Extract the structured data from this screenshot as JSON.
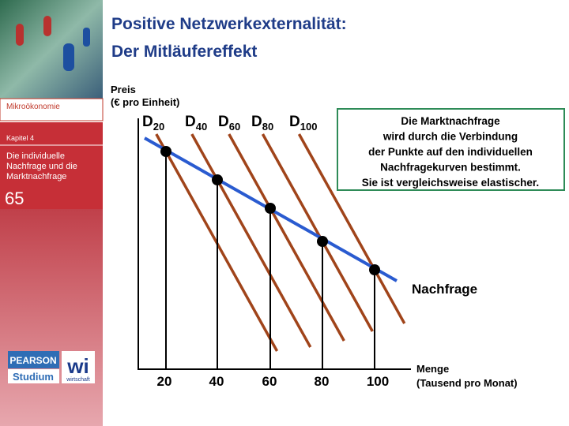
{
  "sidebar": {
    "course": "Mikroökonomie",
    "chapter": "Kapitel 4",
    "chapter_title": [
      "Die individuelle",
      "Nachfrage und die",
      "Marktnachfrage"
    ],
    "slide_number": "65",
    "logo": {
      "publisher": "PEARSON",
      "imprint": "Studium",
      "series": "wi",
      "series_sub": "wirtschaft"
    }
  },
  "title": [
    "Positive Netzwerkexternalität:",
    "Der Mitläufereffekt"
  ],
  "diagram": {
    "y_axis_label": [
      "Preis",
      "(€ pro Einheit)"
    ],
    "x_axis_label": [
      "Menge",
      "(Tausend pro Monat)"
    ],
    "x_labels": [
      "20",
      "40",
      "60",
      "80",
      "100"
    ],
    "curves": [
      {
        "letter": "D",
        "sub": "20"
      },
      {
        "letter": "D",
        "sub": "40"
      },
      {
        "letter": "D",
        "sub": "60"
      },
      {
        "letter": "D",
        "sub": "80"
      },
      {
        "letter": "D",
        "sub": "100"
      }
    ],
    "market_curve_label": "Nachfrage",
    "note": [
      "Die Marktnachfrage",
      "wird durch die Verbindung",
      "der Punkte auf den individuellen",
      "Nachfragekurven bestimmt.",
      "Sie ist vergleichsweise elastischer."
    ]
  }
}
